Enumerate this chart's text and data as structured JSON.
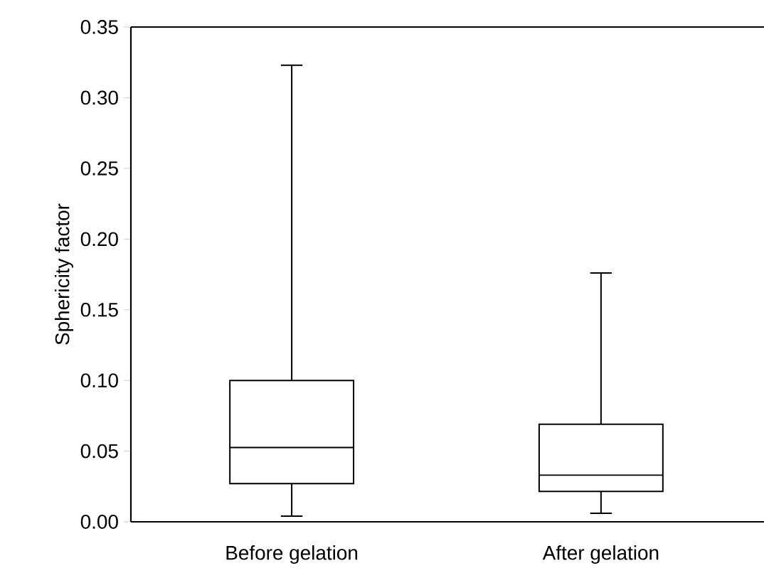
{
  "chart_data": {
    "type": "box",
    "ylabel": "Sphericity factor",
    "categories": [
      "Before gelation",
      "After gelation"
    ],
    "boxes": [
      {
        "low": 0.004,
        "q1": 0.027,
        "median": 0.0525,
        "q3": 0.1,
        "high": 0.323
      },
      {
        "low": 0.006,
        "q1": 0.0215,
        "median": 0.033,
        "q3": 0.069,
        "high": 0.176
      }
    ],
    "ylim": [
      0,
      0.35
    ],
    "yticks": [
      {
        "value": 0,
        "label": "0.00"
      },
      {
        "value": 0.05,
        "label": "0.05"
      },
      {
        "value": 0.1,
        "label": "0.10"
      },
      {
        "value": 0.15,
        "label": "0.15"
      },
      {
        "value": 0.2,
        "label": "0.20"
      },
      {
        "value": 0.25,
        "label": "0.25"
      },
      {
        "value": 0.3,
        "label": "0.30"
      },
      {
        "value": 0.35,
        "label": "0.35"
      }
    ],
    "grid": false
  }
}
